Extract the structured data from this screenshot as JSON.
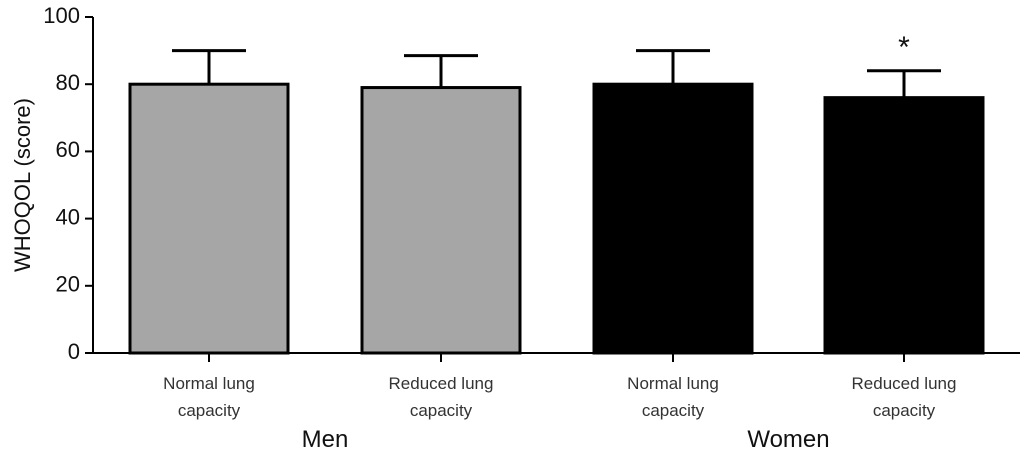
{
  "chart_data": {
    "type": "bar",
    "ylabel": "WHOQOL (score)",
    "ylim": [
      0,
      100
    ],
    "yticks": [
      0,
      20,
      40,
      60,
      80,
      100
    ],
    "bars": [
      {
        "label_line1": "Normal lung",
        "label_line2": "capacity",
        "group": "Men",
        "value": 80,
        "error_upper": 90,
        "color": "#a6a6a6",
        "significance": ""
      },
      {
        "label_line1": "Reduced lung",
        "label_line2": "capacity",
        "group": "Men",
        "value": 79,
        "error_upper": 88.5,
        "color": "#a6a6a6",
        "significance": ""
      },
      {
        "label_line1": "Normal lung",
        "label_line2": "capacity",
        "group": "Women",
        "value": 80,
        "error_upper": 90,
        "color": "#000000",
        "significance": ""
      },
      {
        "label_line1": "Reduced lung",
        "label_line2": "capacity",
        "group": "Women",
        "value": 76,
        "error_upper": 84,
        "color": "#000000",
        "significance": "*"
      }
    ],
    "groups": [
      "Men",
      "Women"
    ],
    "grid": false,
    "legend": "none"
  }
}
